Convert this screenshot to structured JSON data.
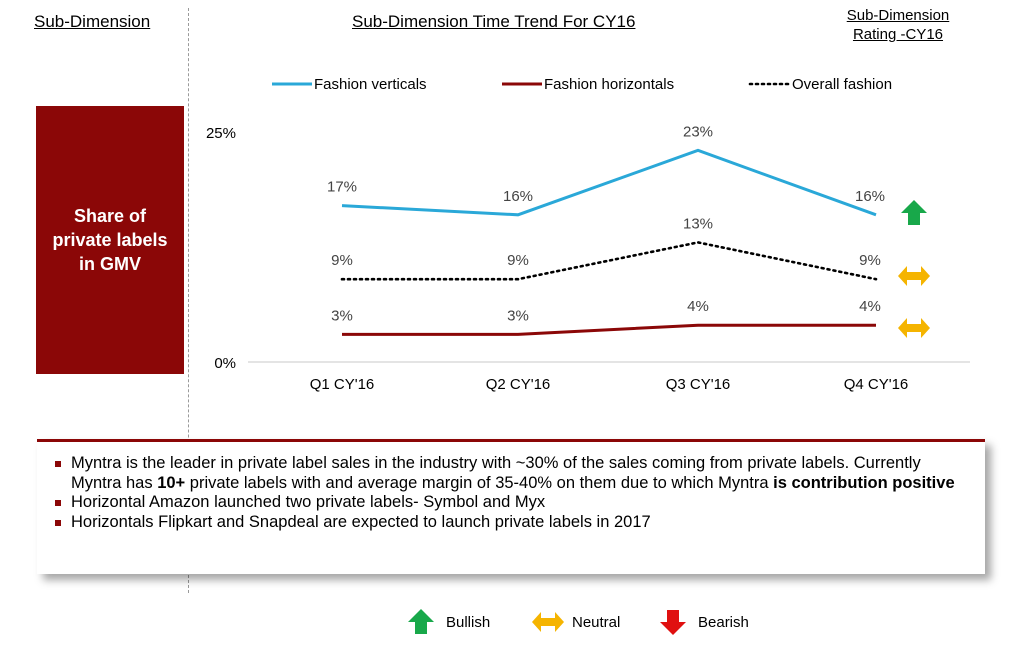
{
  "header": {
    "left": "Sub-Dimension",
    "center": "Sub-Dimension Time Trend For CY16",
    "right_line1": "Sub-Dimension",
    "right_line2": "Rating -CY16"
  },
  "sub_dimension_box": {
    "label": "Share of\nprivate labels\nin GMV"
  },
  "chart_data": {
    "type": "line",
    "categories": [
      "Q1 CY'16",
      "Q2 CY'16",
      "Q3 CY'16",
      "Q4 CY'16"
    ],
    "series": [
      {
        "name": "Fashion verticals",
        "values": [
          17,
          16,
          23,
          16
        ],
        "labels": [
          "17%",
          "16%",
          "23%",
          "16%"
        ],
        "color": "#2aa8d8",
        "style": "solid"
      },
      {
        "name": "Fashion horizontals",
        "values": [
          3,
          3,
          4,
          4
        ],
        "labels": [
          "3%",
          "3%",
          "4%",
          "4%"
        ],
        "color": "#8b0707",
        "style": "solid"
      },
      {
        "name": "Overall fashion",
        "values": [
          9,
          9,
          13,
          9
        ],
        "labels": [
          "9%",
          "9%",
          "13%",
          "9%"
        ],
        "color": "#000000",
        "style": "dotted"
      }
    ],
    "y_ticks": [
      "0%",
      "25%"
    ],
    "ylim": [
      0,
      25
    ],
    "legend_position": "top",
    "ratings": [
      "bullish",
      "neutral",
      "neutral"
    ]
  },
  "notes": {
    "bullets": [
      {
        "parts": [
          {
            "text": "Myntra is the leader in private label sales in the industry with ~30% of the sales coming from private labels. Currently Myntra has ",
            "bold": false
          },
          {
            "text": "10+",
            "bold": true
          },
          {
            "text": " private labels with and average margin of 35-40% on them due to which Myntra ",
            "bold": false
          },
          {
            "text": "is contribution positive",
            "bold": true
          }
        ]
      },
      {
        "parts": [
          {
            "text": "Horizontal Amazon launched two private labels- Symbol and Myx",
            "bold": false
          }
        ]
      },
      {
        "parts": [
          {
            "text": "Horizontals Flipkart and Snapdeal are expected to launch private labels in 2017",
            "bold": false
          }
        ]
      }
    ]
  },
  "rating_legend": [
    {
      "key": "bullish",
      "label": "Bullish",
      "color": "#18a84a",
      "icon": "up-arrow-icon"
    },
    {
      "key": "neutral",
      "label": "Neutral",
      "color": "#f5b400",
      "icon": "left-right-arrow-icon"
    },
    {
      "key": "bearish",
      "label": "Bearish",
      "color": "#e01010",
      "icon": "down-arrow-icon"
    }
  ]
}
